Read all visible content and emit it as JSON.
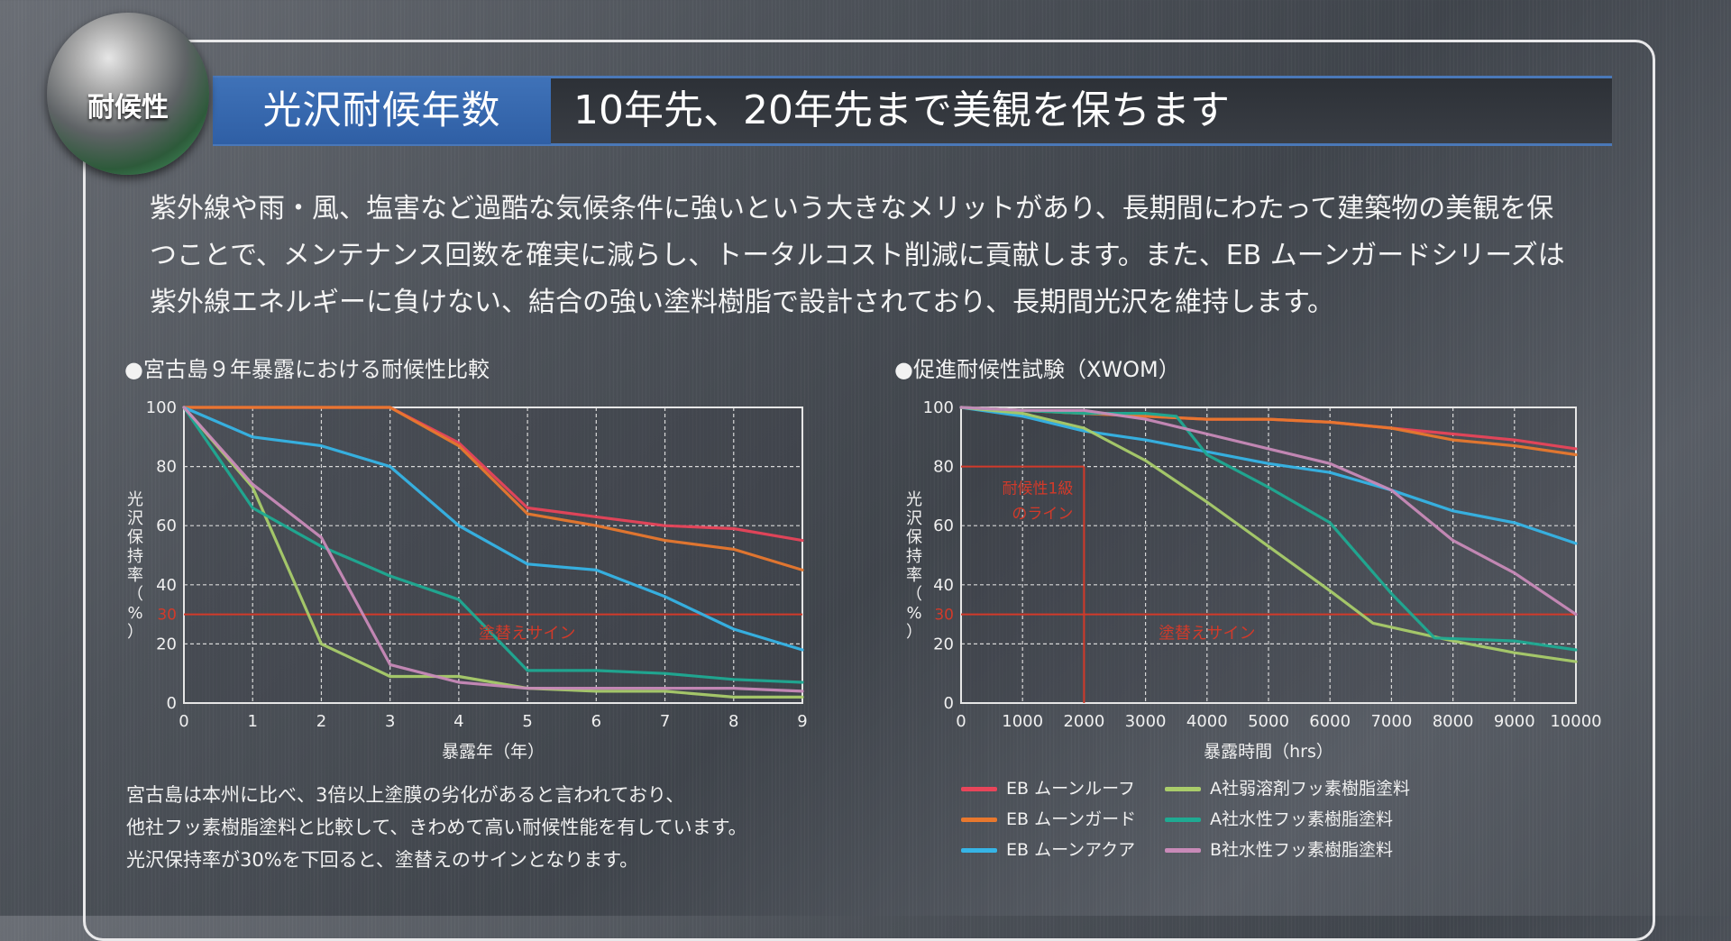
{
  "header": {
    "badge": "耐候性",
    "title": "光沢耐候年数",
    "headline": "10年先、20年先まで美観を保ちます"
  },
  "intro": {
    "lines": [
      "紫外線や雨・風、塩害など過酷な気候条件に強いという大きなメリットがあり、長期間にわたって建築物の美観を保",
      "つことで、メンテナンス回数を確実に減らし、トータルコスト削減に貢献します。また、EB ムーンガードシリーズは",
      "紫外線エネルギーに負けない、結合の強い塗料樹脂で設計されており、長期間光沢を維持します。"
    ]
  },
  "note": {
    "lines": [
      "宮古島は本州に比べ、3倍以上塗膜の劣化があると言われており、",
      "他社フッ素樹脂塗料と比較して、きわめて高い耐候性能を有しています。",
      "光沢保持率が30%を下回ると、塗替えのサインとなります。"
    ]
  },
  "colors": {
    "eb_roof": "#e8455a",
    "eb_guard": "#e8782e",
    "eb_aqua": "#36b4e6",
    "a_solvent": "#a9cc6a",
    "a_water": "#1faa92",
    "b_water": "#c88ab8",
    "ref_line": "#d23a2a",
    "ref_text": "#d23a2a"
  },
  "legend": [
    {
      "label": "EB ムーンルーフ",
      "color": "#e8455a"
    },
    {
      "label": "EB ムーンガード",
      "color": "#e8782e"
    },
    {
      "label": "EB ムーンアクア",
      "color": "#36b4e6"
    },
    {
      "label": "A社弱溶剤フッ素樹脂塗料",
      "color": "#a9cc6a"
    },
    {
      "label": "A社水性フッ素樹脂塗料",
      "color": "#1faa92"
    },
    {
      "label": "B社水性フッ素樹脂塗料",
      "color": "#c88ab8"
    }
  ],
  "chart_data": [
    {
      "type": "line",
      "title": "●宮古島９年暴露における耐候性比較",
      "xlabel": "暴露年（年）",
      "ylabel_chars": [
        "光",
        "沢",
        "保",
        "持",
        "率",
        "（",
        "%",
        "）"
      ],
      "xlim": [
        0,
        9
      ],
      "ylim": [
        0,
        100
      ],
      "xticks": [
        "0",
        "1",
        "2",
        "3",
        "4",
        "5",
        "6",
        "7",
        "8",
        "9"
      ],
      "yticks": [
        "0",
        "20",
        "40",
        "60",
        "80",
        "100"
      ],
      "grid": true,
      "ref_value": 30,
      "ref_tick": "30",
      "ref_label": "塗替えサイン",
      "series": [
        {
          "name": "EB ムーンルーフ",
          "color": "#e8455a",
          "x": [
            0,
            1,
            2,
            3,
            4,
            5,
            6,
            7,
            8,
            9
          ],
          "y": [
            100,
            100,
            100,
            100,
            88,
            66,
            63,
            60,
            59,
            55
          ]
        },
        {
          "name": "EB ムーンガード",
          "color": "#e8782e",
          "x": [
            0,
            1,
            2,
            3,
            4,
            5,
            6,
            7,
            8,
            9
          ],
          "y": [
            100,
            100,
            100,
            100,
            87,
            64,
            60,
            55,
            52,
            45
          ]
        },
        {
          "name": "EB ムーンアクア",
          "color": "#36b4e6",
          "x": [
            0,
            1,
            2,
            3,
            4,
            5,
            6,
            7,
            8,
            9
          ],
          "y": [
            100,
            90,
            87,
            80,
            60,
            47,
            45,
            36,
            25,
            18
          ]
        },
        {
          "name": "A社弱溶剤フッ素樹脂塗料",
          "color": "#a9cc6a",
          "x": [
            0,
            1,
            2,
            3,
            4,
            5,
            6,
            7,
            8,
            9
          ],
          "y": [
            100,
            73,
            20,
            9,
            9,
            5,
            4,
            4,
            2,
            2
          ]
        },
        {
          "name": "A社水性フッ素樹脂塗料",
          "color": "#1faa92",
          "x": [
            0,
            1,
            2,
            3,
            4,
            5,
            6,
            7,
            8,
            9
          ],
          "y": [
            100,
            66,
            53,
            43,
            35,
            11,
            11,
            10,
            8,
            7
          ]
        },
        {
          "name": "B社水性フッ素樹脂塗料",
          "color": "#c88ab8",
          "x": [
            0,
            1,
            2,
            3,
            4,
            5,
            6,
            7,
            8,
            9
          ],
          "y": [
            100,
            74,
            56,
            13,
            7,
            5,
            5,
            5,
            5,
            4
          ]
        }
      ]
    },
    {
      "type": "line",
      "title": "●促進耐候性試験（XWOM）",
      "xlabel": "暴露時間（hrs）",
      "ylabel_chars": [
        "光",
        "沢",
        "保",
        "持",
        "率",
        "（",
        "%",
        "）"
      ],
      "xlim": [
        0,
        10000
      ],
      "ylim": [
        0,
        100
      ],
      "xticks": [
        "0",
        "1000",
        "2000",
        "3000",
        "4000",
        "5000",
        "6000",
        "7000",
        "8000",
        "9000",
        "10000"
      ],
      "yticks": [
        "0",
        "20",
        "40",
        "60",
        "80",
        "100"
      ],
      "grid": true,
      "ref_value": 30,
      "ref_tick": "30",
      "ref_label": "塗替えサイン",
      "ref_box_x": 2000,
      "ref_box_y": 80,
      "ref_box_label": [
        "耐候性1級",
        "のライン"
      ],
      "series": [
        {
          "name": "EB ムーンルーフ",
          "color": "#e8455a",
          "x": [
            0,
            1000,
            2000,
            3000,
            4000,
            5000,
            6000,
            7000,
            8000,
            9000,
            10000
          ],
          "y": [
            100,
            99,
            98,
            97,
            96,
            96,
            95,
            93,
            91,
            89,
            86
          ]
        },
        {
          "name": "EB ムーンガード",
          "color": "#e8782e",
          "x": [
            0,
            1000,
            2000,
            3000,
            4000,
            5000,
            6000,
            7000,
            8000,
            9000,
            10000
          ],
          "y": [
            100,
            99,
            98,
            97,
            96,
            96,
            95,
            93,
            89,
            87,
            84
          ]
        },
        {
          "name": "EB ムーンアクア",
          "color": "#36b4e6",
          "x": [
            0,
            1000,
            2000,
            3000,
            4000,
            5000,
            6000,
            7000,
            8000,
            9000,
            10000
          ],
          "y": [
            100,
            97,
            92,
            89,
            85,
            81,
            78,
            72,
            65,
            61,
            54
          ]
        },
        {
          "name": "A社弱溶剤フッ素樹脂塗料",
          "color": "#a9cc6a",
          "x": [
            0,
            1000,
            2000,
            3000,
            4000,
            5000,
            6000,
            6700,
            8000,
            9000,
            10000
          ],
          "y": [
            100,
            98,
            93,
            82,
            68,
            53,
            38,
            27,
            21,
            17,
            14
          ]
        },
        {
          "name": "A社水性フッ素樹脂塗料",
          "color": "#1faa92",
          "x": [
            0,
            1000,
            2000,
            3000,
            3500,
            4000,
            5000,
            6000,
            7000,
            7700,
            9000,
            10000
          ],
          "y": [
            100,
            99,
            98,
            98,
            97,
            84,
            73,
            61,
            37,
            22,
            21,
            18
          ]
        },
        {
          "name": "B社水性フッ素樹脂塗料",
          "color": "#c88ab8",
          "x": [
            0,
            1000,
            2000,
            3000,
            4000,
            5000,
            6000,
            7000,
            8000,
            9000,
            10000
          ],
          "y": [
            100,
            99,
            99,
            96,
            91,
            86,
            81,
            72,
            55,
            44,
            30
          ]
        }
      ]
    }
  ]
}
